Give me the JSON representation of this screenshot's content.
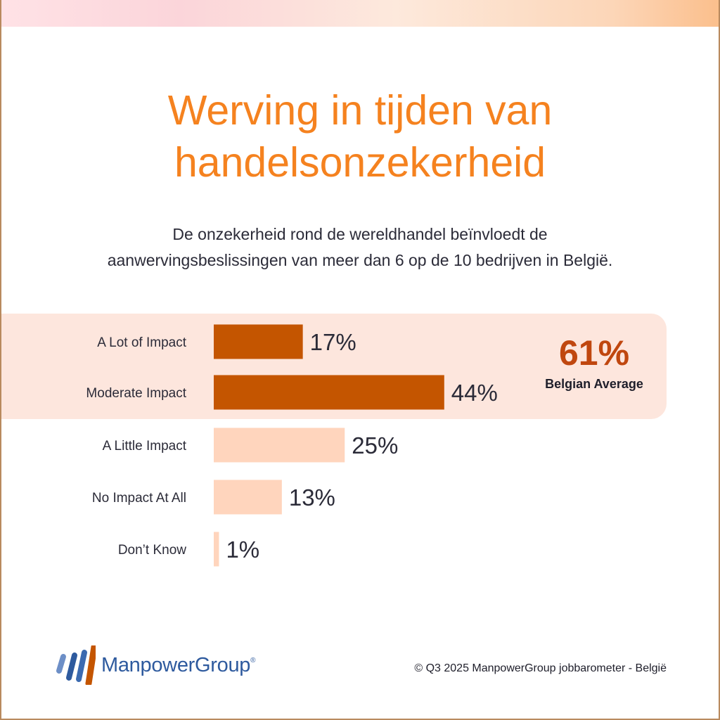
{
  "header": {
    "title_line1": "Werving in tijden van",
    "title_line2": "handelsonzekerheid",
    "subtitle_line1": "De onzekerheid rond de wereldhandel beïnvloedt de",
    "subtitle_line2": "aanwervingsbeslissingen van meer dan 6 op de 10 bedrijven in België."
  },
  "chart_data": {
    "type": "bar",
    "orientation": "horizontal",
    "categories": [
      "A Lot of Impact",
      "Moderate Impact",
      "A Little Impact",
      "No Impact At All",
      "Don’t Know"
    ],
    "values": [
      17,
      44,
      25,
      13,
      1
    ],
    "value_labels": [
      "17%",
      "44%",
      "25%",
      "13%",
      "1%"
    ],
    "unit": "%",
    "highlighted": [
      true,
      true,
      false,
      false,
      false
    ],
    "colors": {
      "highlight": "#c45500",
      "normal": "#ffd5bd",
      "band": "#fde6dd",
      "label": "#2b2b38"
    },
    "grid": false,
    "callout": {
      "value": "61%",
      "label": "Belgian Average"
    }
  },
  "brand": {
    "logo_icon": "manpowergroup-stripes-icon",
    "name": "ManpowerGroup",
    "trademark": "®",
    "stripe_colors": [
      "#6d8fc7",
      "#2e5a9e",
      "#3b6ab0",
      "#c45500"
    ]
  },
  "footer": {
    "source": "© Q3 2025 ManpowerGroup jobbarometer - België"
  }
}
